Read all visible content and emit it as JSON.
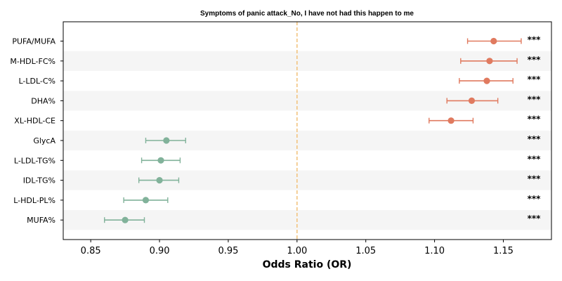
{
  "chart_data": {
    "type": "forest",
    "title": "Symptoms of panic attack_No, I have not had this happen to me",
    "xlabel": "Odds Ratio (OR)",
    "ylabel": "",
    "xlim": [
      0.83,
      1.185
    ],
    "xticks": [
      "0.85",
      "0.90",
      "0.95",
      "1.00",
      "1.05",
      "1.10",
      "1.15"
    ],
    "reference_line": 1.0,
    "colors": {
      "positive": "#e07a5f",
      "negative": "#81b29a",
      "reference": "#f2c078",
      "stripe": "#f5f5f5"
    },
    "rows": [
      {
        "label": "PUFA/MUFA",
        "or": 1.143,
        "ci_low": 1.124,
        "ci_high": 1.163,
        "sig": "***"
      },
      {
        "label": "M-HDL-FC%",
        "or": 1.14,
        "ci_low": 1.119,
        "ci_high": 1.16,
        "sig": "***"
      },
      {
        "label": "L-LDL-C%",
        "or": 1.138,
        "ci_low": 1.118,
        "ci_high": 1.157,
        "sig": "***"
      },
      {
        "label": "DHA%",
        "or": 1.127,
        "ci_low": 1.109,
        "ci_high": 1.146,
        "sig": "***"
      },
      {
        "label": "XL-HDL-CE",
        "or": 1.112,
        "ci_low": 1.096,
        "ci_high": 1.128,
        "sig": "***"
      },
      {
        "label": "GlycA",
        "or": 0.905,
        "ci_low": 0.89,
        "ci_high": 0.919,
        "sig": "***"
      },
      {
        "label": "L-LDL-TG%",
        "or": 0.901,
        "ci_low": 0.887,
        "ci_high": 0.915,
        "sig": "***"
      },
      {
        "label": "IDL-TG%",
        "or": 0.9,
        "ci_low": 0.885,
        "ci_high": 0.914,
        "sig": "***"
      },
      {
        "label": "L-HDL-PL%",
        "or": 0.89,
        "ci_low": 0.874,
        "ci_high": 0.906,
        "sig": "***"
      },
      {
        "label": "MUFA%",
        "or": 0.875,
        "ci_low": 0.86,
        "ci_high": 0.889,
        "sig": "***"
      }
    ]
  }
}
